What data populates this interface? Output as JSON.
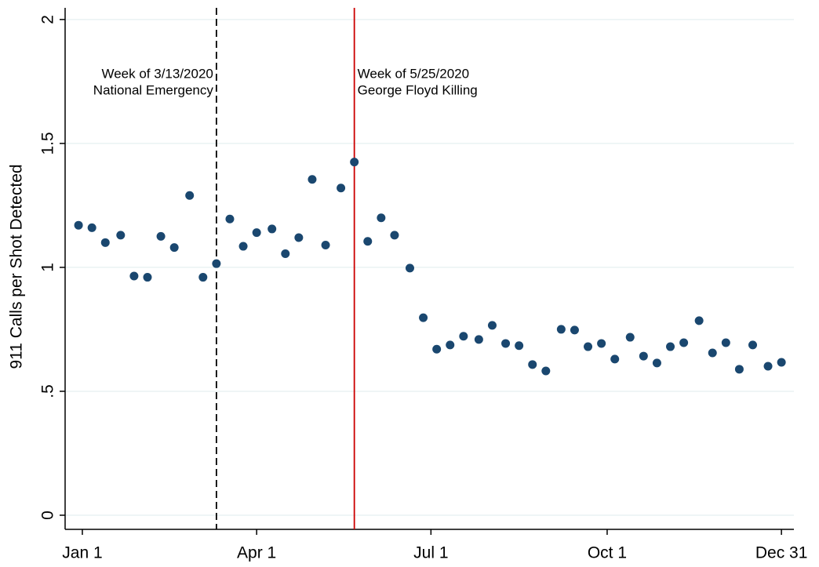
{
  "chart_data": {
    "type": "scatter",
    "y_label": "911 Calls per Shot Detected",
    "color": "#1a476f",
    "grid": true,
    "xlim": [
      -9,
      371.5
    ],
    "ylim": [
      -0.057,
      2.047
    ],
    "xticks": [
      {
        "value": 0,
        "label": "Jan 1"
      },
      {
        "value": 91,
        "label": "Apr 1"
      },
      {
        "value": 182,
        "label": "Jul 1"
      },
      {
        "value": 274,
        "label": "Oct 1"
      },
      {
        "value": 365,
        "label": "Dec 31"
      }
    ],
    "yticks": [
      0,
      {
        "value": 0.5,
        "label": ".5"
      },
      1,
      1.5,
      2
    ],
    "x": [
      -2,
      5,
      12,
      20,
      27,
      34,
      41,
      48,
      56,
      63,
      70,
      77,
      84,
      91,
      99,
      106,
      113,
      120,
      127,
      135,
      142,
      149,
      156,
      163,
      171,
      178,
      185,
      192,
      199,
      207,
      214,
      221,
      228,
      235,
      242,
      250,
      257,
      264,
      271,
      278,
      286,
      293,
      300,
      307,
      314,
      322,
      329,
      336,
      343,
      350,
      358,
      365
    ],
    "values": [
      1.17,
      1.16,
      1.1,
      1.13,
      0.965,
      0.96,
      1.125,
      1.08,
      1.29,
      0.96,
      1.015,
      1.195,
      1.085,
      1.14,
      1.155,
      1.055,
      1.12,
      1.355,
      1.09,
      1.32,
      1.425,
      1.105,
      1.2,
      1.13,
      0.997,
      0.797,
      0.67,
      0.687,
      0.722,
      0.709,
      0.766,
      0.693,
      0.684,
      0.608,
      0.582,
      0.75,
      0.747,
      0.68,
      0.693,
      0.63,
      0.718,
      0.642,
      0.614,
      0.68,
      0.696,
      0.785,
      0.655,
      0.696,
      0.589,
      0.687,
      0.601,
      0.617
    ],
    "vlines": [
      {
        "x": 70,
        "color": "#000000",
        "style": "dashed",
        "side": "left",
        "text": [
          "Week of 3/13/2020",
          "National Emergency"
        ]
      },
      {
        "x": 142,
        "color": "#cc0000",
        "style": "solid",
        "side": "right",
        "text": [
          "Week of 5/25/2020",
          "George Floyd Killing"
        ]
      }
    ]
  }
}
